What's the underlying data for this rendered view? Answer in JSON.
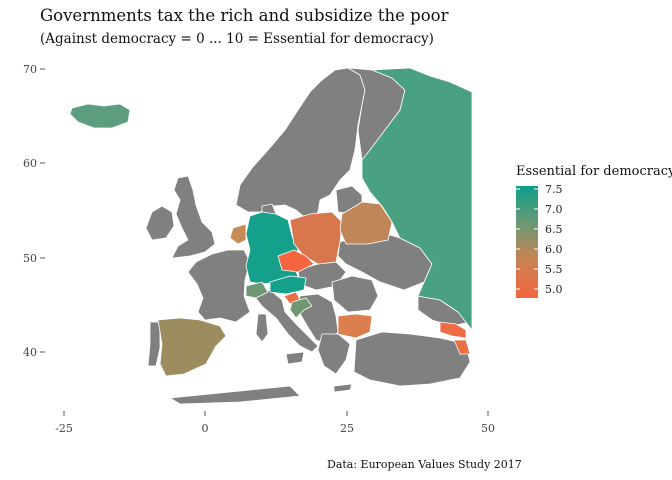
{
  "header": {
    "title": "Governments tax the rich and subsidize the poor",
    "subtitle": "(Against democracy = 0 ... 10 = Essential for democracy)",
    "caption": "Data: European Values Study 2017"
  },
  "chart_data": {
    "type": "choropleth-map",
    "title": "Governments tax the rich and subsidize the poor",
    "subtitle": "(Against democracy = 0 ... 10 = Essential for democracy)",
    "x_axis": {
      "ticks": [
        "-25",
        "0",
        "25",
        "50"
      ],
      "range": [
        -25,
        50
      ],
      "unit": "longitude"
    },
    "y_axis": {
      "ticks": [
        "40",
        "50",
        "60",
        "70"
      ],
      "range": [
        34,
        71
      ],
      "unit": "latitude"
    },
    "grid": false,
    "legend": {
      "title": "Essential for democracy",
      "placement": "right",
      "ticks": [
        "7.5",
        "7.0",
        "6.5",
        "6.0",
        "5.5",
        "5.0"
      ],
      "range": [
        4.85,
        7.6
      ],
      "colors": {
        "high": "#0e9f8a",
        "low": "#f5653f"
      }
    },
    "no_data_color": "#808080",
    "regions": [
      {
        "name": "Iceland",
        "value": 6.9,
        "color": "#5c9e7f"
      },
      {
        "name": "Germany",
        "value": 7.5,
        "color": "#14a08a"
      },
      {
        "name": "Russia",
        "value": 7.2,
        "color": "#49a182"
      },
      {
        "name": "Spain",
        "value": 6.3,
        "color": "#9c8c60"
      },
      {
        "name": "Poland",
        "value": 5.9,
        "color": "#d8774d"
      },
      {
        "name": "Czechia",
        "value": 5.0,
        "color": "#f5653f"
      },
      {
        "name": "Austria",
        "value": 7.5,
        "color": "#14a08a"
      },
      {
        "name": "Belarus",
        "value": 6.2,
        "color": "#c18657"
      },
      {
        "name": "Netherlands",
        "value": 6.1,
        "color": "#c58a56"
      },
      {
        "name": "Switzerland",
        "value": 6.8,
        "color": "#6f9872"
      },
      {
        "name": "Bulgaria",
        "value": 5.8,
        "color": "#dc7f4f"
      },
      {
        "name": "Georgia",
        "value": 5.3,
        "color": "#ee6c42"
      },
      {
        "name": "Armenia",
        "value": 5.4,
        "color": "#ec6e44"
      },
      {
        "name": "Croatia",
        "value": 6.8,
        "color": "#6f9872"
      },
      {
        "name": "Slovenia",
        "value": 5.3,
        "color": "#ee6c42"
      }
    ]
  }
}
